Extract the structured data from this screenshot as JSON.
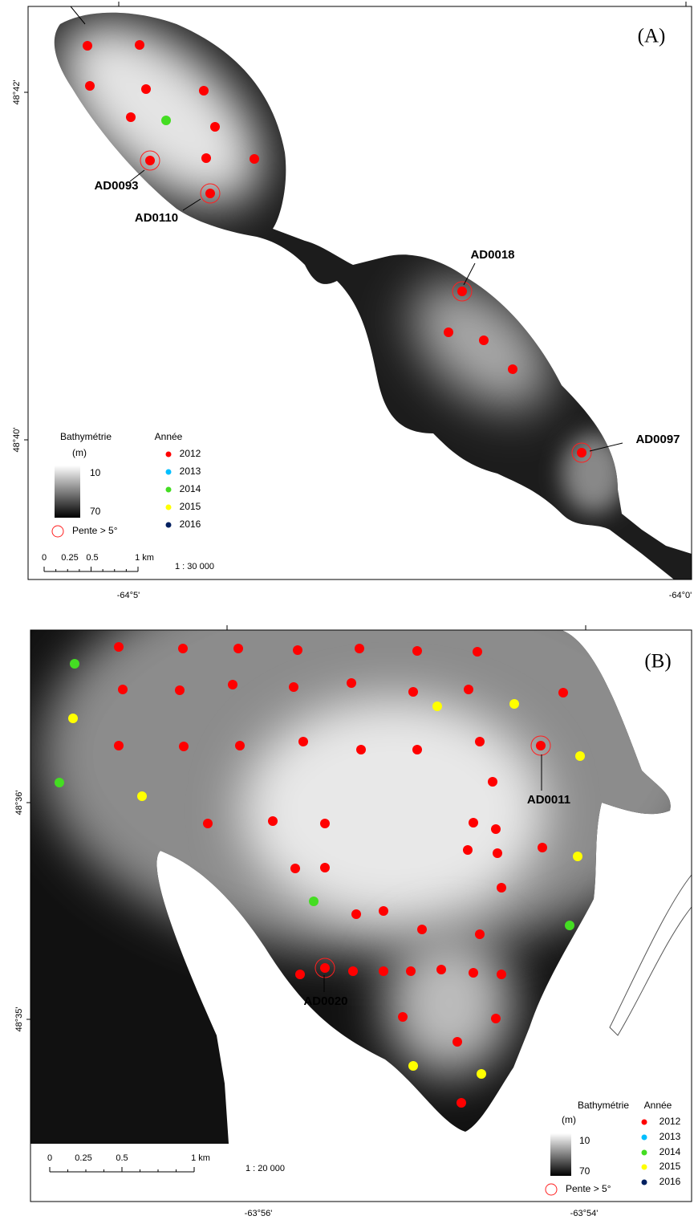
{
  "panels": [
    {
      "label": "(A)",
      "longitude_labels": [
        "-64°5'",
        "-64°0'"
      ],
      "latitude_labels": [
        "48°42'",
        "48°40'"
      ],
      "annotations": [
        "AD0093",
        "AD0110",
        "AD0018",
        "AD0097"
      ],
      "legend": {
        "bathymetry_title": "Bathymétrie",
        "bathymetry_unit": "(m)",
        "bathymetry_ticks": [
          10,
          70
        ],
        "year_title": "Année",
        "years": [
          {
            "label": "2012",
            "color": "#ff0000"
          },
          {
            "label": "2013",
            "color": "#00bfff"
          },
          {
            "label": "2014",
            "color": "#44dd22"
          },
          {
            "label": "2015",
            "color": "#ffff00"
          },
          {
            "label": "2016",
            "color": "#002060"
          }
        ],
        "slope_label": "Pente > 5°"
      },
      "scale_bar": {
        "ticks": [
          0,
          0.25,
          0.5,
          "1 km"
        ],
        "ratio": "1 : 30 000"
      }
    },
    {
      "label": "(B)",
      "longitude_labels": [
        "-63°56'",
        "-63°54'"
      ],
      "latitude_labels": [
        "48°36'",
        "48°35'"
      ],
      "annotations": [
        "AD0011",
        "AD0020"
      ],
      "legend": {
        "bathymetry_title": "Bathymétrie",
        "bathymetry_unit": "(m)",
        "bathymetry_ticks": [
          10,
          70
        ],
        "year_title": "Année",
        "years": [
          {
            "label": "2012",
            "color": "#ff0000"
          },
          {
            "label": "2013",
            "color": "#00bfff"
          },
          {
            "label": "2014",
            "color": "#44dd22"
          },
          {
            "label": "2015",
            "color": "#ffff00"
          },
          {
            "label": "2016",
            "color": "#002060"
          }
        ],
        "slope_label": "Pente > 5°"
      },
      "scale_bar": {
        "ticks": [
          0,
          0.25,
          0.5,
          "1 km"
        ],
        "ratio": "1 : 20 000"
      }
    }
  ]
}
